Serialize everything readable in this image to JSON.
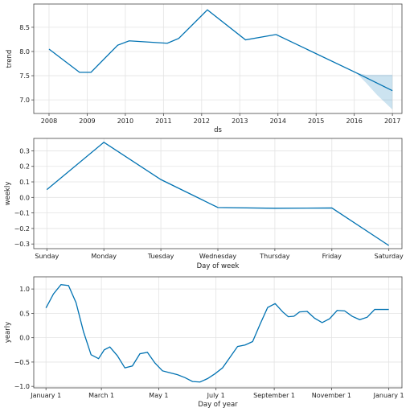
{
  "chart_data": [
    {
      "type": "line",
      "id": "trend",
      "xlabel": "ds",
      "ylabel": "trend",
      "xlim": [
        2007.6,
        2017.25
      ],
      "ylim": [
        6.72,
        8.98
      ],
      "x_ticks": [
        2008,
        2009,
        2010,
        2011,
        2012,
        2013,
        2014,
        2015,
        2016,
        2017
      ],
      "y_ticks": [
        7.0,
        7.5,
        8.0,
        8.5
      ],
      "y_tick_labels": [
        "7.0",
        "7.5",
        "8.0",
        "8.5"
      ],
      "grid": true,
      "color": "#0072B2",
      "series": [
        {
          "x": [
            2008.0,
            2008.8,
            2009.1,
            2009.8,
            2010.1,
            2011.1,
            2011.4,
            2012.15,
            2013.15,
            2013.95,
            2016.05,
            2017.0
          ],
          "values": [
            8.05,
            7.57,
            7.57,
            8.13,
            8.22,
            8.17,
            8.27,
            8.86,
            8.24,
            8.35,
            7.56,
            7.19
          ]
        }
      ],
      "uncertainty": {
        "x": [
          2016.05,
          2016.3,
          2016.6,
          2016.8,
          2017.0
        ],
        "lower": [
          7.56,
          7.36,
          7.1,
          6.95,
          6.8
        ],
        "upper": [
          7.56,
          7.52,
          7.52,
          7.52,
          7.52
        ]
      }
    },
    {
      "type": "line",
      "id": "weekly",
      "xlabel": "Day of week",
      "ylabel": "weekly",
      "categories": [
        "Sunday",
        "Monday",
        "Tuesday",
        "Wednesday",
        "Thursday",
        "Friday",
        "Saturday"
      ],
      "ylim": [
        -0.33,
        0.38
      ],
      "y_ticks": [
        -0.3,
        -0.2,
        -0.1,
        0.0,
        0.1,
        0.2,
        0.3
      ],
      "y_tick_labels": [
        "−0.3",
        "−0.2",
        "−0.1",
        "0.0",
        "0.1",
        "0.2",
        "0.3"
      ],
      "grid": true,
      "color": "#0072B2",
      "series": [
        {
          "values": [
            0.05,
            0.355,
            0.115,
            -0.065,
            -0.07,
            -0.068,
            -0.31
          ]
        }
      ]
    },
    {
      "type": "line",
      "id": "yearly",
      "xlabel": "Day of year",
      "ylabel": "yearly",
      "xlim": [
        -13,
        379
      ],
      "ylim": [
        -1.03,
        1.25
      ],
      "x_ticks": [
        0,
        59,
        120,
        181,
        243,
        304,
        365
      ],
      "x_tick_labels": [
        "January 1",
        "March 1",
        "May 1",
        "July 1",
        "September 1",
        "November 1",
        "January 1"
      ],
      "y_ticks": [
        -1.0,
        -0.5,
        0.0,
        0.5,
        1.0
      ],
      "y_tick_labels": [
        "−1.0",
        "−0.5",
        "0.0",
        "0.5",
        "1.0"
      ],
      "grid": true,
      "color": "#0072B2",
      "series": [
        {
          "x": [
            0,
            8,
            16,
            24,
            32,
            40,
            48,
            56,
            62,
            68,
            76,
            84,
            92,
            100,
            108,
            116,
            124,
            132,
            140,
            148,
            156,
            164,
            172,
            180,
            188,
            196,
            204,
            212,
            220,
            228,
            236,
            244,
            252,
            258,
            264,
            270,
            278,
            286,
            294,
            302,
            310,
            318,
            326,
            334,
            342,
            350,
            358,
            365
          ],
          "values": [
            0.61,
            0.9,
            1.09,
            1.07,
            0.72,
            0.12,
            -0.35,
            -0.43,
            -0.25,
            -0.19,
            -0.37,
            -0.62,
            -0.58,
            -0.33,
            -0.3,
            -0.52,
            -0.68,
            -0.72,
            -0.76,
            -0.82,
            -0.9,
            -0.91,
            -0.84,
            -0.74,
            -0.62,
            -0.4,
            -0.18,
            -0.15,
            -0.08,
            0.28,
            0.62,
            0.7,
            0.53,
            0.43,
            0.44,
            0.53,
            0.54,
            0.4,
            0.31,
            0.39,
            0.56,
            0.55,
            0.44,
            0.37,
            0.42,
            0.58,
            0.58,
            0.58
          ]
        }
      ]
    }
  ]
}
